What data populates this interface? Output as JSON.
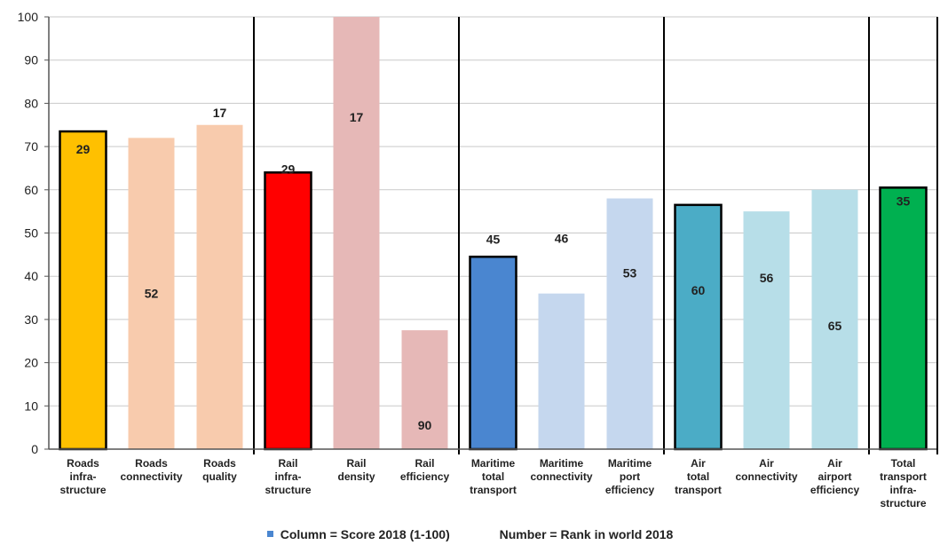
{
  "chart_data": {
    "type": "bar",
    "ylim": [
      0,
      100
    ],
    "yticks": [
      0,
      10,
      20,
      30,
      40,
      50,
      60,
      70,
      80,
      90,
      100
    ],
    "grid": true,
    "bars": [
      {
        "label": [
          "Roads",
          "infra-",
          "structure"
        ],
        "value": 73.5,
        "rank": "29",
        "color": "#FFC000",
        "outlined": true
      },
      {
        "label": [
          "Roads",
          "connectivity"
        ],
        "value": 72,
        "rank": "52",
        "color": "#F8CBAD",
        "outlined": false
      },
      {
        "label": [
          "Roads",
          "quality"
        ],
        "value": 75,
        "rank": "17",
        "color": "#F8CBAD",
        "outlined": false
      },
      {
        "label": [
          "Rail",
          "infra-",
          "structure"
        ],
        "value": 64,
        "rank": "29",
        "color": "#FF0000",
        "outlined": true
      },
      {
        "label": [
          "Rail",
          "density"
        ],
        "value": 100,
        "rank": "17",
        "color": "#E6B8B7",
        "outlined": false
      },
      {
        "label": [
          "Rail",
          "efficiency"
        ],
        "value": 27.5,
        "rank": "90",
        "color": "#E6B8B7",
        "outlined": false
      },
      {
        "label": [
          "Maritime",
          "total",
          "transport"
        ],
        "value": 44.5,
        "rank": "45",
        "color": "#4A86D0",
        "outlined": true
      },
      {
        "label": [
          "Maritime",
          "connectivity"
        ],
        "value": 36,
        "rank": "46",
        "color": "#C5D7EE",
        "outlined": false
      },
      {
        "label": [
          "Maritime",
          "port",
          "efficiency"
        ],
        "value": 58,
        "rank": "53",
        "color": "#C5D7EE",
        "outlined": false
      },
      {
        "label": [
          "Air",
          "total",
          "transport"
        ],
        "value": 56.5,
        "rank": "60",
        "color": "#4BACC6",
        "outlined": true
      },
      {
        "label": [
          "Air",
          "connectivity"
        ],
        "value": 55,
        "rank": "56",
        "color": "#B7DEE8",
        "outlined": false
      },
      {
        "label": [
          "Air",
          "airport",
          "efficiency"
        ],
        "value": 60,
        "rank": "65",
        "color": "#B7DEE8",
        "outlined": false
      },
      {
        "label": [
          "Total",
          "transport",
          "infra-",
          "structure"
        ],
        "value": 60.5,
        "rank": "35",
        "color": "#00B050",
        "outlined": true
      }
    ],
    "group_dividers_after": [
      2,
      5,
      8,
      11
    ],
    "legend": {
      "series_label": "Column = Score 2018 (1-100)",
      "series_color": "#4A86D0",
      "note": "Number = Rank in world 2018"
    }
  }
}
